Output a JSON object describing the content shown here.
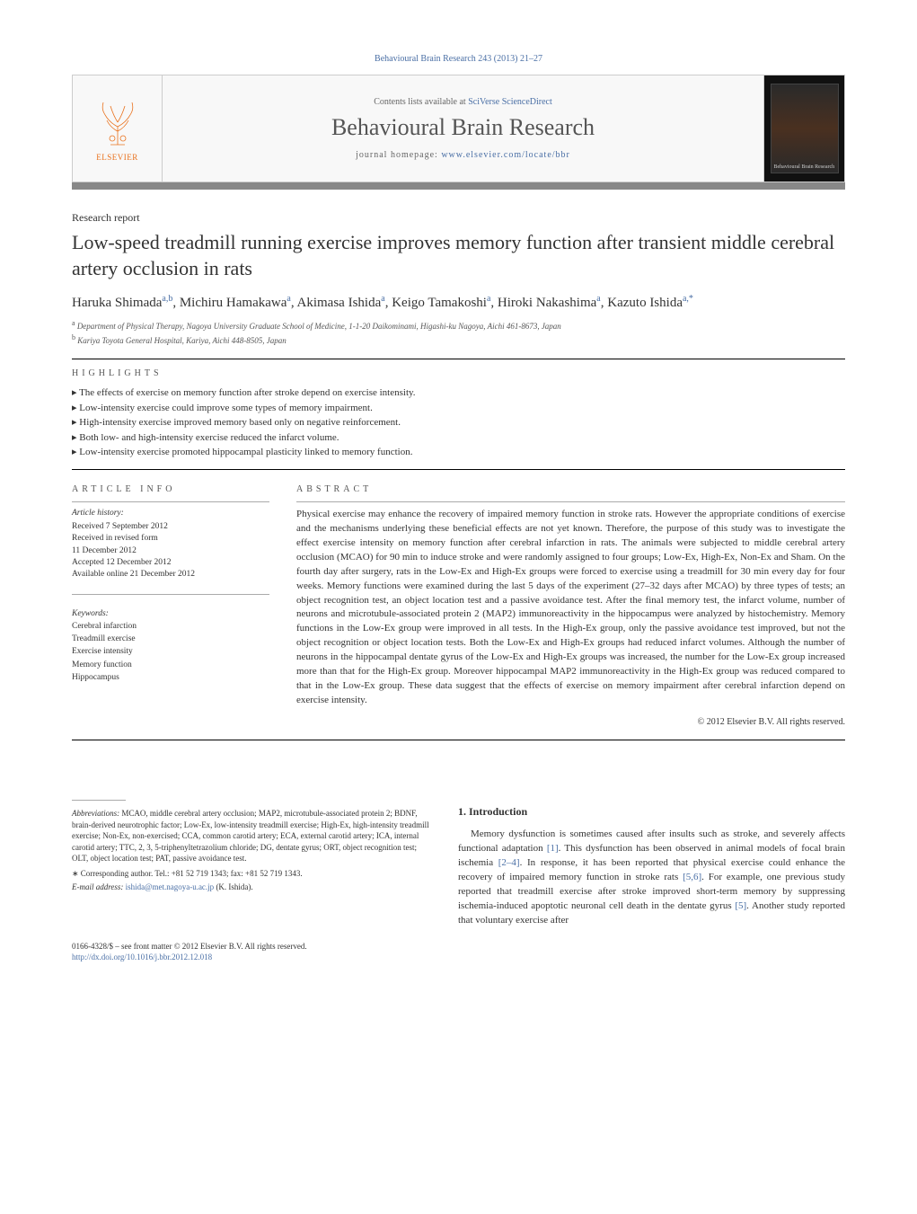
{
  "journal_ref": "Behavioural Brain Research 243 (2013) 21–27",
  "header": {
    "contents_prefix": "Contents lists available at ",
    "contents_link": "SciVerse ScienceDirect",
    "journal_name": "Behavioural Brain Research",
    "homepage_prefix": "journal homepage: ",
    "homepage_url": "www.elsevier.com/locate/bbr",
    "publisher_label": "ELSEVIER",
    "cover_label": "Behavioural Brain Research"
  },
  "article": {
    "type": "Research report",
    "title": "Low-speed treadmill running exercise improves memory function after transient middle cerebral artery occlusion in rats",
    "authors_html": "Haruka Shimada|a,b|, Michiru Hamakawa|a|, Akimasa Ishida|a|, Keigo Tamakoshi|a|, Hiroki Nakashima|a|, Kazuto Ishida|a,*|"
  },
  "affiliations": [
    {
      "mark": "a",
      "text": "Department of Physical Therapy, Nagoya University Graduate School of Medicine, 1-1-20 Daikominami, Higashi-ku Nagoya, Aichi 461-8673, Japan"
    },
    {
      "mark": "b",
      "text": "Kariya Toyota General Hospital, Kariya, Aichi 448-8505, Japan"
    }
  ],
  "highlights_label": "HIGHLIGHTS",
  "highlights": [
    "The effects of exercise on memory function after stroke depend on exercise intensity.",
    "Low-intensity exercise could improve some types of memory impairment.",
    "High-intensity exercise improved memory based only on negative reinforcement.",
    "Both low- and high-intensity exercise reduced the infarct volume.",
    "Low-intensity exercise promoted hippocampal plasticity linked to memory function."
  ],
  "article_info": {
    "label": "ARTICLE INFO",
    "history_label": "Article history:",
    "history": [
      "Received 7 September 2012",
      "Received in revised form",
      "11 December 2012",
      "Accepted 12 December 2012",
      "Available online 21 December 2012"
    ],
    "keywords_label": "Keywords:",
    "keywords": [
      "Cerebral infarction",
      "Treadmill exercise",
      "Exercise intensity",
      "Memory function",
      "Hippocampus"
    ]
  },
  "abstract": {
    "label": "ABSTRACT",
    "text": "Physical exercise may enhance the recovery of impaired memory function in stroke rats. However the appropriate conditions of exercise and the mechanisms underlying these beneficial effects are not yet known. Therefore, the purpose of this study was to investigate the effect exercise intensity on memory function after cerebral infarction in rats. The animals were subjected to middle cerebral artery occlusion (MCAO) for 90 min to induce stroke and were randomly assigned to four groups; Low-Ex, High-Ex, Non-Ex and Sham. On the fourth day after surgery, rats in the Low-Ex and High-Ex groups were forced to exercise using a treadmill for 30 min every day for four weeks. Memory functions were examined during the last 5 days of the experiment (27–32 days after MCAO) by three types of tests; an object recognition test, an object location test and a passive avoidance test. After the final memory test, the infarct volume, number of neurons and microtubule-associated protein 2 (MAP2) immunoreactivity in the hippocampus were analyzed by histochemistry. Memory functions in the Low-Ex group were improved in all tests. In the High-Ex group, only the passive avoidance test improved, but not the object recognition or object location tests. Both the Low-Ex and High-Ex groups had reduced infarct volumes. Although the number of neurons in the hippocampal dentate gyrus of the Low-Ex and High-Ex groups was increased, the number for the Low-Ex group increased more than that for the High-Ex group. Moreover hippocampal MAP2 immunoreactivity in the High-Ex group was reduced compared to that in the Low-Ex group. These data suggest that the effects of exercise on memory impairment after cerebral infarction depend on exercise intensity.",
    "copyright": "© 2012 Elsevier B.V. All rights reserved."
  },
  "intro": {
    "heading": "1. Introduction",
    "paragraph": "Memory dysfunction is sometimes caused after insults such as stroke, and severely affects functional adaptation [1]. This dysfunction has been observed in animal models of focal brain ischemia [2–4]. In response, it has been reported that physical exercise could enhance the recovery of impaired memory function in stroke rats [5,6]. For example, one previous study reported that treadmill exercise after stroke improved short-term memory by suppressing ischemia-induced apoptotic neuronal cell death in the dentate gyrus [5]. Another study reported that voluntary exercise after"
  },
  "footer": {
    "abbr_label": "Abbreviations:",
    "abbr_text": " MCAO, middle cerebral artery occlusion; MAP2, microtubule-associated protein 2; BDNF, brain-derived neurotrophic factor; Low-Ex, low-intensity treadmill exercise; High-Ex, high-intensity treadmill exercise; Non-Ex, non-exercised; CCA, common carotid artery; ECA, external carotid artery; ICA, internal carotid artery; TTC, 2, 3, 5-triphenyltetrazolium chloride; DG, dentate gyrus; ORT, object recognition test; OLT, object location test; PAT, passive avoidance test.",
    "corr_label": "∗ Corresponding author. Tel.: +81 52 719 1343; fax: +81 52 719 1343.",
    "email_label": "E-mail address: ",
    "email": "ishida@met.nagoya-u.ac.jp",
    "email_suffix": " (K. Ishida).",
    "issn_line": "0166-4328/$ – see front matter © 2012 Elsevier B.V. All rights reserved.",
    "doi": "http://dx.doi.org/10.1016/j.bbr.2012.12.018"
  }
}
